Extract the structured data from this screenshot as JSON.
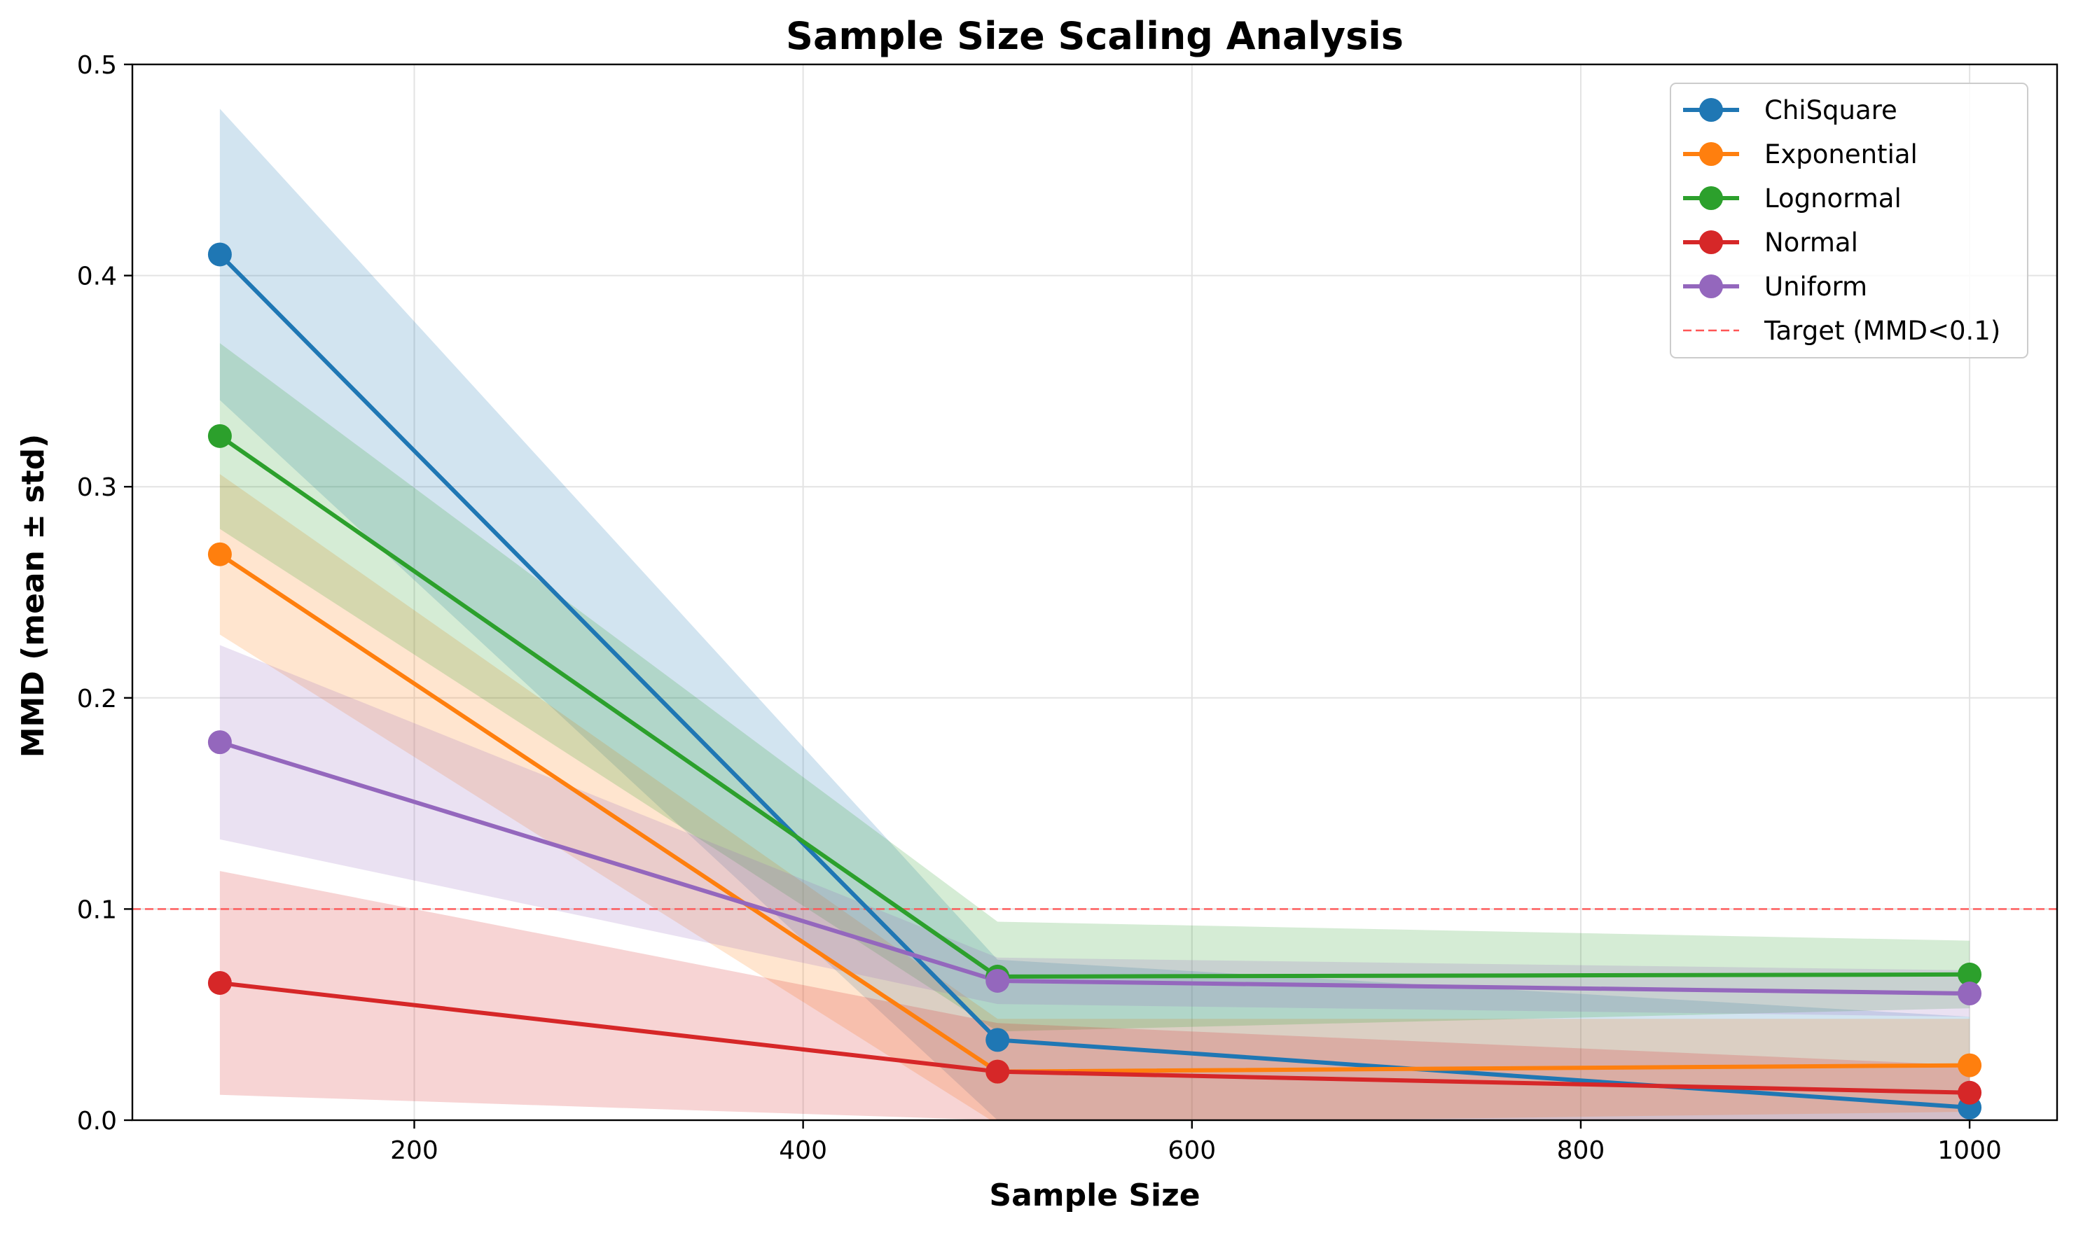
{
  "chart_data": {
    "type": "line",
    "title": "Sample Size Scaling Analysis",
    "xlabel": "Sample Size",
    "ylabel": "MMD (mean ± std)",
    "x": [
      100,
      500,
      1000
    ],
    "xlim": [
      55,
      1045
    ],
    "ylim": [
      0,
      0.5
    ],
    "xticks": [
      200,
      400,
      600,
      800,
      1000
    ],
    "yticks": [
      0.0,
      0.1,
      0.2,
      0.3,
      0.4,
      0.5
    ],
    "grid": true,
    "legend_position": "top-right",
    "series": [
      {
        "name": "ChiSquare",
        "color": "#1f77b4",
        "values": [
          0.41,
          0.038,
          0.006
        ],
        "std": [
          0.069,
          0.038,
          0.043
        ]
      },
      {
        "name": "Exponential",
        "color": "#ff7f0e",
        "values": [
          0.268,
          0.023,
          0.026
        ],
        "std": [
          0.038,
          0.025,
          0.022
        ]
      },
      {
        "name": "Lognormal",
        "color": "#2ca02c",
        "values": [
          0.324,
          0.068,
          0.069
        ],
        "std": [
          0.044,
          0.026,
          0.016
        ]
      },
      {
        "name": "Normal",
        "color": "#d62728",
        "values": [
          0.065,
          0.023,
          0.013
        ],
        "std": [
          0.053,
          0.023,
          0.013
        ]
      },
      {
        "name": "Uniform",
        "color": "#9467bd",
        "values": [
          0.179,
          0.066,
          0.06
        ],
        "std": [
          0.046,
          0.011,
          0.011
        ]
      }
    ],
    "reference_line": {
      "label": "Target (MMD<0.1)",
      "y": 0.1,
      "color": "#ff5555",
      "style": "dashed"
    }
  }
}
